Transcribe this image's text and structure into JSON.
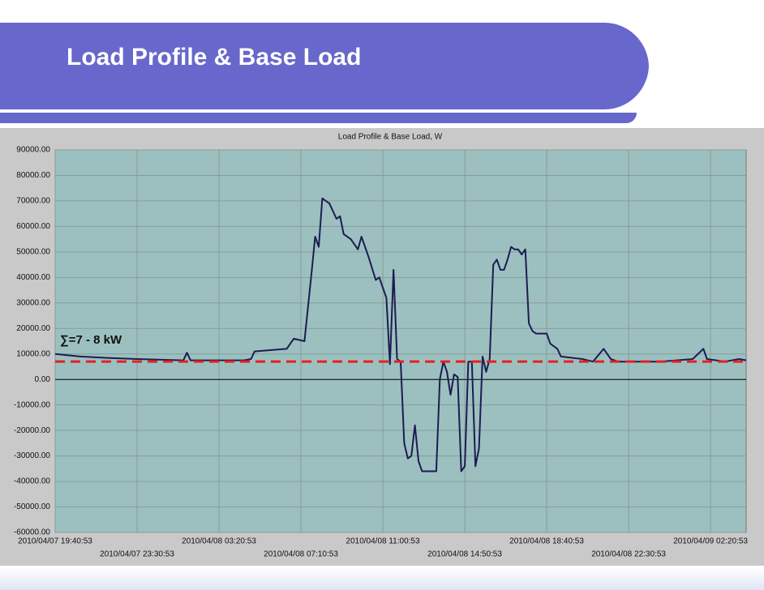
{
  "header": {
    "title": "Load Profile & Base Load"
  },
  "chart_data": {
    "type": "line",
    "title": "Load Profile & Base Load, W",
    "color": "#1c1c52",
    "x": [
      "2010/04/07 19:40:53",
      "2010/04/07 20:50:53",
      "2010/04/07 22:00:53",
      "2010/04/07 23:30:53",
      "2010/04/08 01:40:53",
      "2010/04/08 01:50:53",
      "2010/04/08 02:00:53",
      "2010/04/08 04:30:53",
      "2010/04/08 04:50:53",
      "2010/04/08 05:00:53",
      "2010/04/08 06:30:53",
      "2010/04/08 06:50:53",
      "2010/04/08 07:20:53",
      "2010/04/08 07:40:53",
      "2010/04/08 07:50:53",
      "2010/04/08 08:00:53",
      "2010/04/08 08:10:53",
      "2010/04/08 08:30:53",
      "2010/04/08 08:50:53",
      "2010/04/08 09:00:53",
      "2010/04/08 09:10:53",
      "2010/04/08 09:30:53",
      "2010/04/08 09:50:53",
      "2010/04/08 10:00:53",
      "2010/04/08 10:20:53",
      "2010/04/08 10:40:53",
      "2010/04/08 10:50:53",
      "2010/04/08 11:10:53",
      "2010/04/08 11:20:53",
      "2010/04/08 11:30:53",
      "2010/04/08 11:40:53",
      "2010/04/08 11:50:53",
      "2010/04/08 12:00:53",
      "2010/04/08 12:10:53",
      "2010/04/08 12:20:53",
      "2010/04/08 12:30:53",
      "2010/04/08 12:40:53",
      "2010/04/08 12:50:53",
      "2010/04/08 13:10:53",
      "2010/04/08 13:30:53",
      "2010/04/08 13:40:53",
      "2010/04/08 13:50:53",
      "2010/04/08 14:00:53",
      "2010/04/08 14:10:53",
      "2010/04/08 14:20:53",
      "2010/04/08 14:30:53",
      "2010/04/08 14:40:53",
      "2010/04/08 14:50:53",
      "2010/04/08 15:00:53",
      "2010/04/08 15:10:53",
      "2010/04/08 15:20:53",
      "2010/04/08 15:30:53",
      "2010/04/08 15:40:53",
      "2010/04/08 15:50:53",
      "2010/04/08 16:00:53",
      "2010/04/08 16:10:53",
      "2010/04/08 16:20:53",
      "2010/04/08 16:30:53",
      "2010/04/08 16:40:53",
      "2010/04/08 16:50:53",
      "2010/04/08 17:00:53",
      "2010/04/08 17:10:53",
      "2010/04/08 17:20:53",
      "2010/04/08 17:30:53",
      "2010/04/08 17:40:53",
      "2010/04/08 17:50:53",
      "2010/04/08 18:00:53",
      "2010/04/08 18:10:53",
      "2010/04/08 18:40:53",
      "2010/04/08 18:50:53",
      "2010/04/08 19:10:53",
      "2010/04/08 19:20:53",
      "2010/04/08 20:20:53",
      "2010/04/08 20:50:53",
      "2010/04/08 21:20:53",
      "2010/04/08 21:40:53",
      "2010/04/08 22:00:53",
      "2010/04/09 00:00:53",
      "2010/04/09 01:30:53",
      "2010/04/09 02:00:53",
      "2010/04/09 02:10:53",
      "2010/04/09 03:00:53",
      "2010/04/09 03:40:53",
      "2010/04/09 04:00:53"
    ],
    "values": [
      10000,
      9000,
      8500,
      8000,
      7500,
      10500,
      7500,
      7500,
      8000,
      11000,
      12000,
      16000,
      15000,
      42000,
      56000,
      52000,
      71000,
      69000,
      63000,
      64000,
      57000,
      55000,
      51000,
      56000,
      48000,
      39000,
      40000,
      32000,
      6000,
      43000,
      8000,
      7000,
      -25000,
      -31000,
      -30000,
      -18000,
      -32000,
      -36000,
      -36000,
      -36000,
      0,
      7000,
      3000,
      -6000,
      2000,
      1000,
      -36000,
      -34000,
      7000,
      7000,
      -34000,
      -27000,
      9000,
      3000,
      8000,
      45000,
      47000,
      43000,
      43000,
      47000,
      52000,
      51000,
      51000,
      49000,
      51000,
      22000,
      19000,
      18000,
      18000,
      14000,
      12000,
      9000,
      8000,
      7000,
      12000,
      8000,
      7000,
      7000,
      8000,
      12000,
      8000,
      7000,
      8000,
      7500
    ],
    "xlim": [
      "2010/04/07 19:40:53",
      "2010/04/09 04:00:53"
    ],
    "xticks": [
      "2010/04/07 19:40:53",
      "2010/04/07 23:30:53",
      "2010/04/08 03:20:53",
      "2010/04/08 07:10:53",
      "2010/04/08 11:00:53",
      "2010/04/08 14:50:53",
      "2010/04/08 18:40:53",
      "2010/04/08 22:30:53",
      "2010/04/09 02:20:53"
    ],
    "ylim": [
      -60000,
      90000
    ],
    "yticks": [
      {
        "value": 90000,
        "label": "90000.00"
      },
      {
        "value": 80000,
        "label": "80000.00"
      },
      {
        "value": 70000,
        "label": "70000.00"
      },
      {
        "value": 60000,
        "label": "60000.00"
      },
      {
        "value": 50000,
        "label": "50000.00"
      },
      {
        "value": 40000,
        "label": "40000.00"
      },
      {
        "value": 30000,
        "label": "30000.00"
      },
      {
        "value": 20000,
        "label": "20000.00"
      },
      {
        "value": 10000,
        "label": "10000.00"
      },
      {
        "value": 0,
        "label": "0.00"
      },
      {
        "value": -10000,
        "label": "-10000.00"
      },
      {
        "value": -20000,
        "label": "-20000.00"
      },
      {
        "value": -30000,
        "label": "-30000.00"
      },
      {
        "value": -40000,
        "label": "-40000.00"
      },
      {
        "value": -50000,
        "label": "-50000.00"
      },
      {
        "value": -60000,
        "label": "-60000.00"
      }
    ],
    "grid": true,
    "base_load": {
      "value": 7000,
      "color": "#e8201c",
      "label": "∑=7 - 8 kW"
    }
  }
}
